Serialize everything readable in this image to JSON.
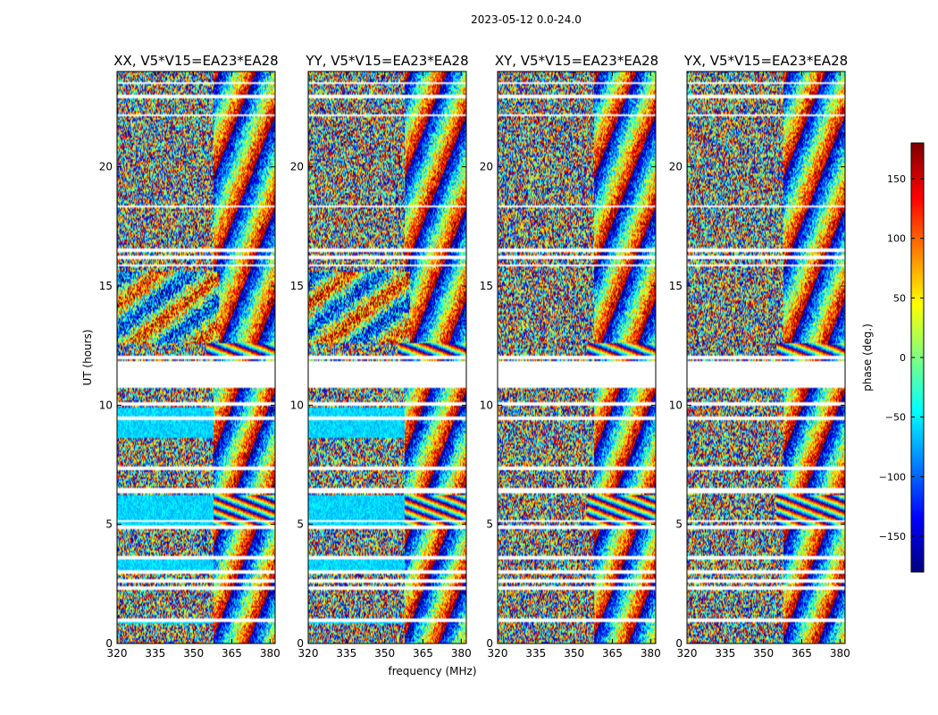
{
  "figure": {
    "suptitle": "2023-05-12 0.0-24.0"
  },
  "chart_data": {
    "type": "heatmap",
    "xlabel": "frequency (MHz)",
    "ylabel": "UT (hours)",
    "xlim": [
      320,
      382
    ],
    "ylim": [
      0,
      24
    ],
    "xticks": [
      320,
      335,
      350,
      365,
      380
    ],
    "yticks": [
      0,
      5,
      10,
      15,
      20
    ],
    "panels": [
      {
        "title": "XX, V5*V15=EA23*EA28",
        "pol": "XX"
      },
      {
        "title": "YY, V5*V15=EA23*EA28",
        "pol": "YY"
      },
      {
        "title": "XY, V5*V15=EA23*EA28",
        "pol": "XY"
      },
      {
        "title": "YX, V5*V15=EA23*EA28",
        "pol": "YX"
      }
    ],
    "colorbar": {
      "label": "phase (deg.)",
      "range": [
        -180,
        180
      ],
      "ticks": [
        -150,
        -100,
        -50,
        0,
        50,
        100,
        150
      ],
      "tick_labels": [
        "−150",
        "−100",
        "−50",
        "0",
        "50",
        "100",
        "150"
      ],
      "colormap": "jet"
    },
    "gaps_ut_hours": [
      [
        11.92,
        12.04
      ],
      [
        10.7,
        11.88
      ],
      [
        9.98,
        10.12
      ],
      [
        9.38,
        9.5
      ],
      [
        7.28,
        7.45
      ],
      [
        6.3,
        6.55
      ],
      [
        5.12,
        5.2
      ],
      [
        4.82,
        4.92
      ],
      [
        3.55,
        3.65
      ],
      [
        2.95,
        3.05
      ],
      [
        2.58,
        2.7
      ],
      [
        2.28,
        2.38
      ],
      [
        0.92,
        1.02
      ],
      [
        16.12,
        16.3
      ],
      [
        15.82,
        15.9
      ],
      [
        16.45,
        16.6
      ],
      [
        18.28,
        18.35
      ],
      [
        22.1,
        22.18
      ],
      [
        22.88,
        23.0
      ],
      [
        23.5,
        23.58
      ]
    ]
  }
}
